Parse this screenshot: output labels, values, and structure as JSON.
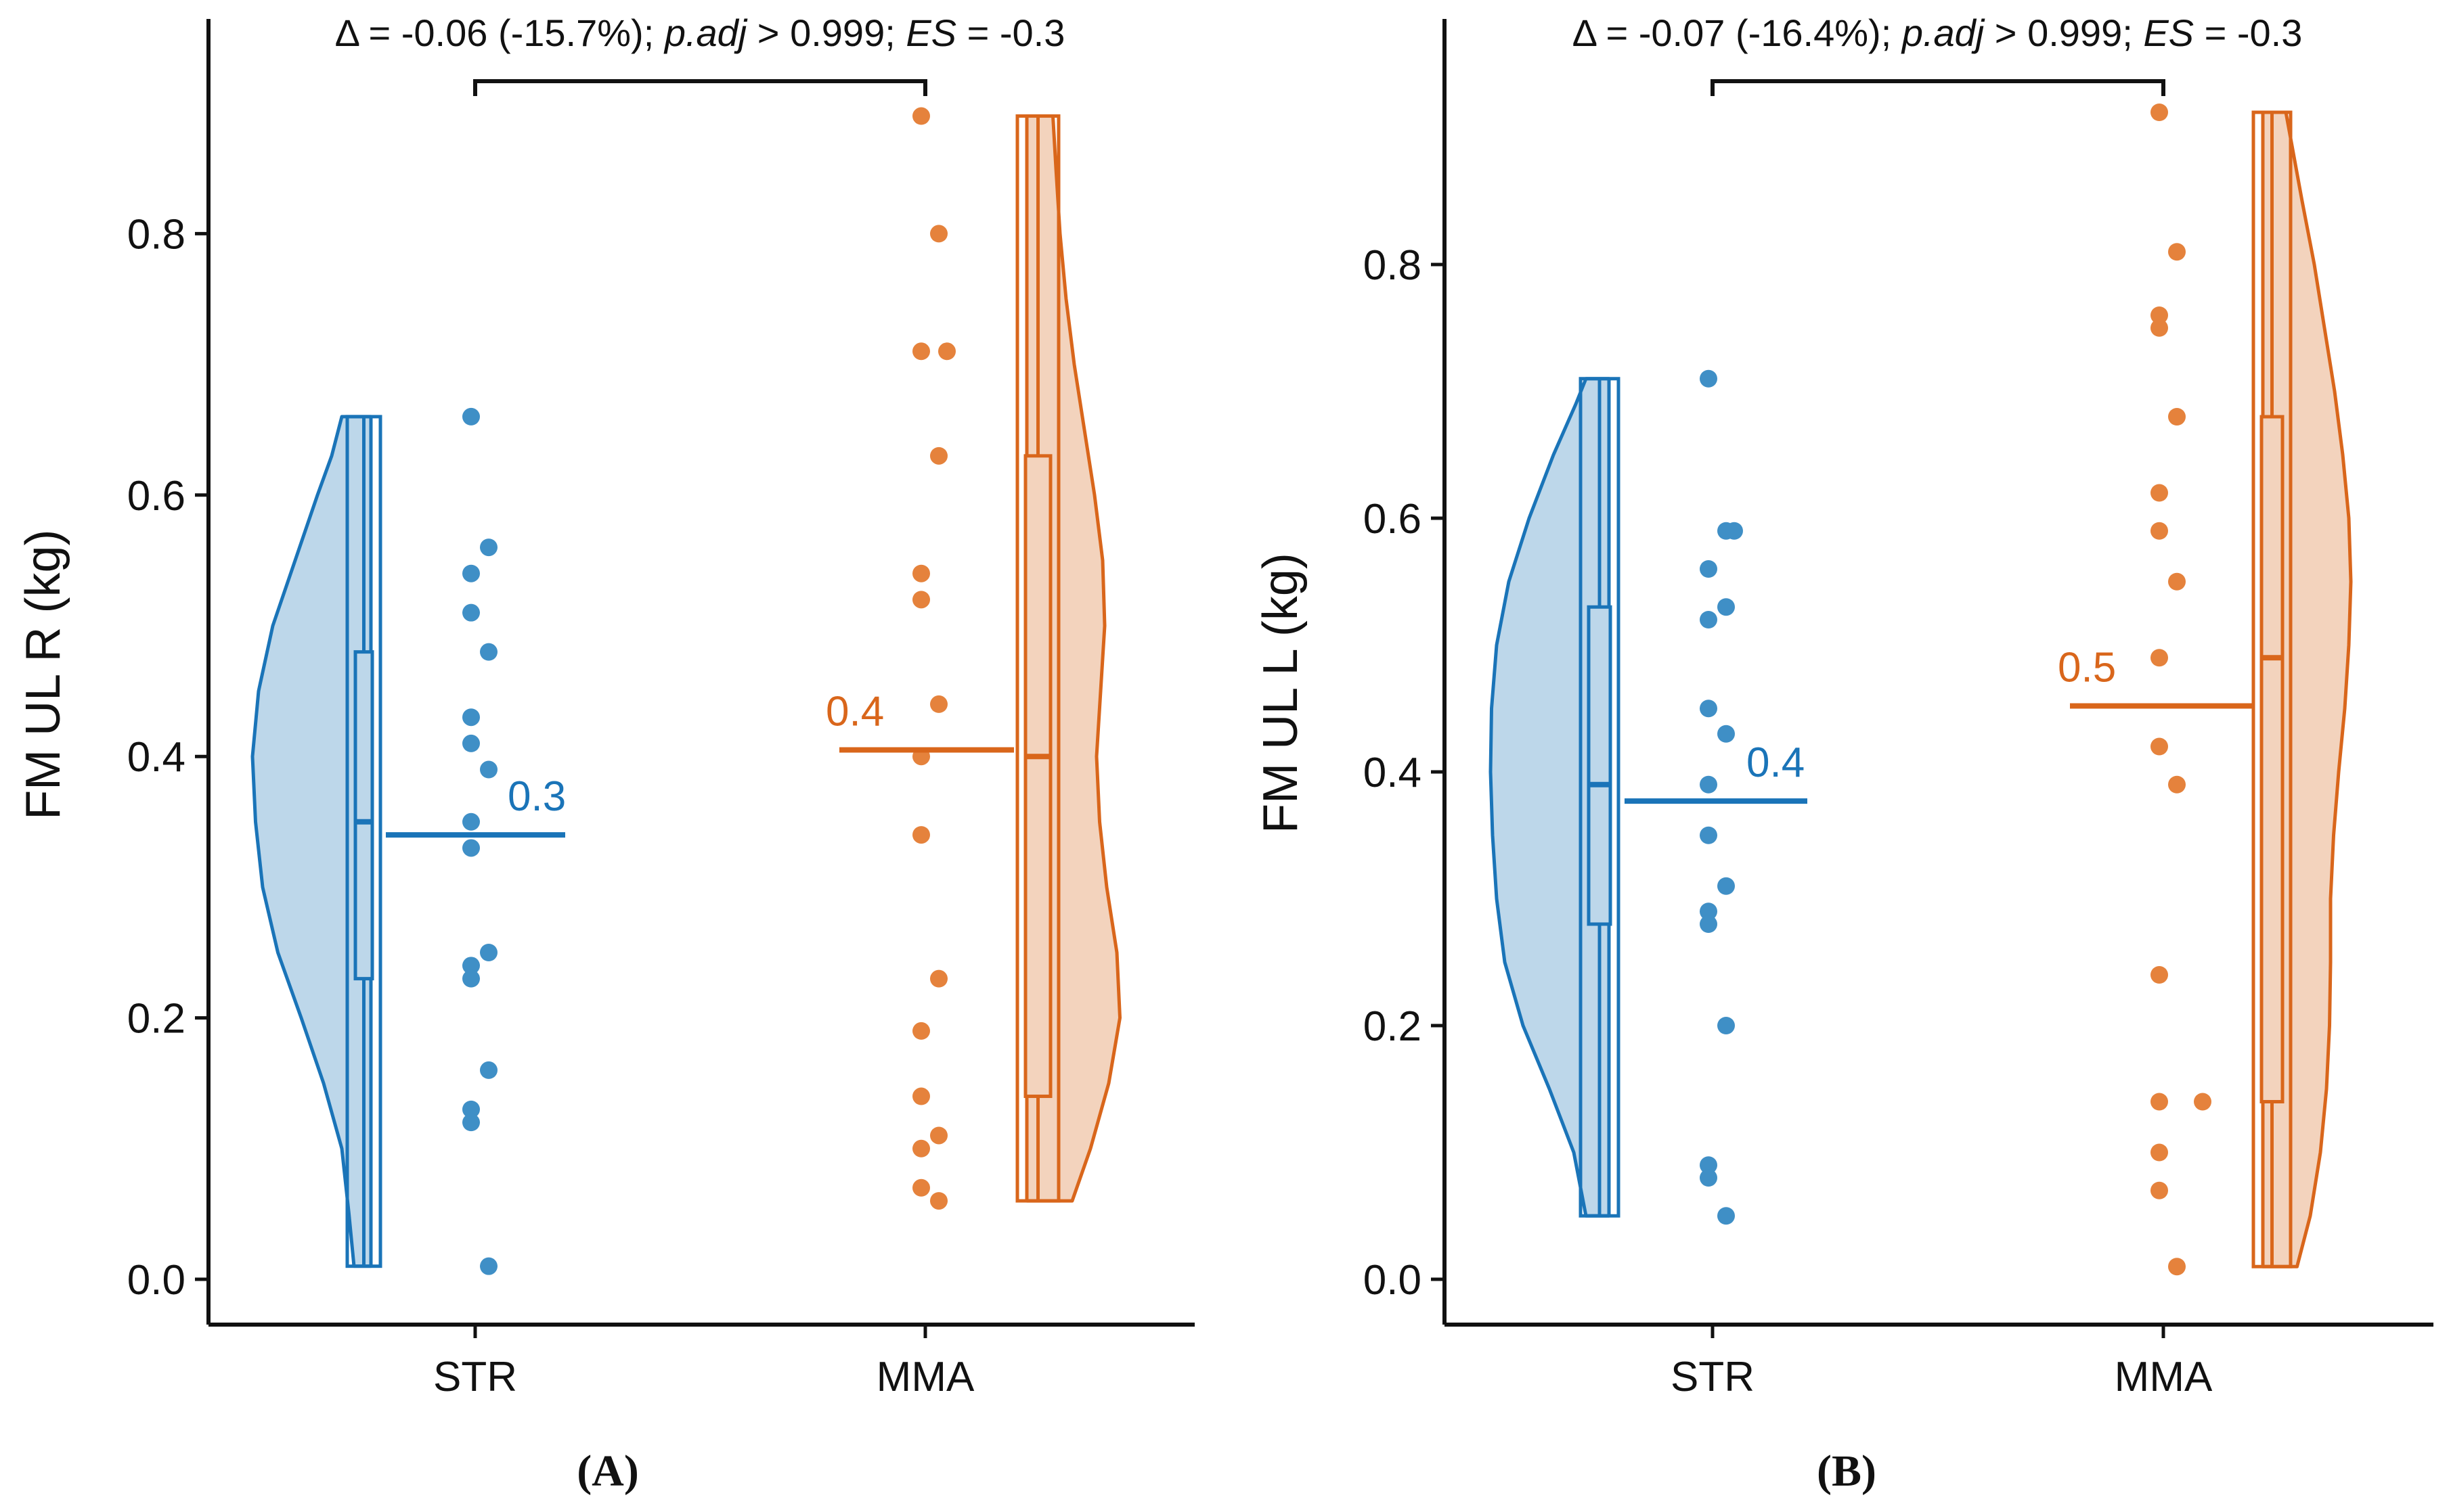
{
  "colors": {
    "STR": "#1a74b8",
    "MMA": "#d9661b",
    "STR_fill": "#bdd7ea",
    "STR_point": "#3f8fc6",
    "MMA_fill": "#f3d3bd",
    "MMA_point": "#e5823c",
    "axis": "#111111"
  },
  "chart_data": [
    {
      "type": "raincloud",
      "panel_label": "(A)",
      "ylabel": "FM UL R (kg)",
      "categories": [
        "STR",
        "MMA"
      ],
      "yticks": [
        "0.0",
        "0.2",
        "0.4",
        "0.6",
        "0.8"
      ],
      "ytick_values": [
        0.0,
        0.2,
        0.4,
        0.6,
        0.8
      ],
      "ylim": [
        -0.04,
        0.96
      ],
      "grid": false,
      "annotation": {
        "delta": "Δ = -0.06 (-15.7%); ",
        "p_label": "p.adj",
        "p_value": " > 0.999; ",
        "es_label": "ES",
        "es_value": " = -0.3"
      },
      "series": [
        {
          "name": "STR",
          "points": [
            0.66,
            0.56,
            0.54,
            0.51,
            0.48,
            0.43,
            0.41,
            0.39,
            0.35,
            0.33,
            0.25,
            0.24,
            0.23,
            0.16,
            0.13,
            0.12,
            0.01
          ],
          "mean": 0.34,
          "mean_label": "0.3",
          "box": {
            "min": 0.01,
            "q1": 0.23,
            "median": 0.35,
            "q3": 0.48,
            "max": 0.66
          },
          "density": [
            [
              0.01,
              0.0
            ],
            [
              0.05,
              0.05
            ],
            [
              0.1,
              0.12
            ],
            [
              0.15,
              0.3
            ],
            [
              0.2,
              0.52
            ],
            [
              0.25,
              0.75
            ],
            [
              0.3,
              0.9
            ],
            [
              0.35,
              0.97
            ],
            [
              0.4,
              1.0
            ],
            [
              0.45,
              0.94
            ],
            [
              0.5,
              0.8
            ],
            [
              0.55,
              0.58
            ],
            [
              0.6,
              0.36
            ],
            [
              0.63,
              0.22
            ],
            [
              0.66,
              0.12
            ]
          ]
        },
        {
          "name": "MMA",
          "points": [
            0.89,
            0.8,
            0.71,
            0.71,
            0.63,
            0.54,
            0.52,
            0.44,
            0.4,
            0.34,
            0.23,
            0.19,
            0.14,
            0.11,
            0.1,
            0.07,
            0.06
          ],
          "mean": 0.405,
          "mean_label": "0.4",
          "box": {
            "min": 0.06,
            "q1": 0.14,
            "median": 0.4,
            "q3": 0.63,
            "max": 0.89
          },
          "density": [
            [
              0.06,
              0.28
            ],
            [
              0.1,
              0.46
            ],
            [
              0.15,
              0.64
            ],
            [
              0.2,
              0.75
            ],
            [
              0.25,
              0.72
            ],
            [
              0.3,
              0.62
            ],
            [
              0.35,
              0.55
            ],
            [
              0.4,
              0.52
            ],
            [
              0.45,
              0.56
            ],
            [
              0.5,
              0.6
            ],
            [
              0.55,
              0.58
            ],
            [
              0.6,
              0.5
            ],
            [
              0.65,
              0.4
            ],
            [
              0.7,
              0.3
            ],
            [
              0.75,
              0.22
            ],
            [
              0.8,
              0.16
            ],
            [
              0.85,
              0.12
            ],
            [
              0.89,
              0.09
            ]
          ]
        }
      ]
    },
    {
      "type": "raincloud",
      "panel_label": "(B)",
      "ylabel": "FM UL L (kg)",
      "categories": [
        "STR",
        "MMA"
      ],
      "yticks": [
        "0.0",
        "0.2",
        "0.4",
        "0.6",
        "0.8"
      ],
      "ytick_values": [
        0.0,
        0.2,
        0.4,
        0.6,
        0.8
      ],
      "ylim": [
        -0.04,
        0.96
      ],
      "grid": false,
      "annotation": {
        "delta": "Δ = -0.07 (-16.4%); ",
        "p_label": "p.adj",
        "p_value": " > 0.999; ",
        "es_label": "ES",
        "es_value": " = -0.3"
      },
      "series": [
        {
          "name": "STR",
          "points": [
            0.71,
            0.59,
            0.59,
            0.56,
            0.53,
            0.52,
            0.45,
            0.43,
            0.39,
            0.35,
            0.31,
            0.29,
            0.28,
            0.2,
            0.09,
            0.08,
            0.05
          ],
          "mean": 0.377,
          "mean_label": "0.4",
          "box": {
            "min": 0.05,
            "q1": 0.28,
            "median": 0.39,
            "q3": 0.53,
            "max": 0.71
          },
          "density": [
            [
              0.05,
              0.06
            ],
            [
              0.1,
              0.18
            ],
            [
              0.15,
              0.42
            ],
            [
              0.2,
              0.68
            ],
            [
              0.25,
              0.86
            ],
            [
              0.3,
              0.94
            ],
            [
              0.35,
              0.98
            ],
            [
              0.4,
              1.0
            ],
            [
              0.45,
              0.99
            ],
            [
              0.5,
              0.94
            ],
            [
              0.55,
              0.82
            ],
            [
              0.6,
              0.62
            ],
            [
              0.65,
              0.38
            ],
            [
              0.69,
              0.16
            ],
            [
              0.71,
              0.06
            ]
          ]
        },
        {
          "name": "MMA",
          "points": [
            0.92,
            0.81,
            0.76,
            0.75,
            0.68,
            0.62,
            0.59,
            0.55,
            0.49,
            0.42,
            0.39,
            0.24,
            0.14,
            0.14,
            0.1,
            0.07,
            0.01
          ],
          "mean": 0.452,
          "mean_label": "0.5",
          "box": {
            "min": 0.01,
            "q1": 0.14,
            "median": 0.49,
            "q3": 0.68,
            "max": 0.92
          },
          "density": [
            [
              0.01,
              0.17
            ],
            [
              0.05,
              0.3
            ],
            [
              0.1,
              0.4
            ],
            [
              0.15,
              0.46
            ],
            [
              0.2,
              0.49
            ],
            [
              0.25,
              0.5
            ],
            [
              0.3,
              0.5
            ],
            [
              0.35,
              0.53
            ],
            [
              0.4,
              0.58
            ],
            [
              0.45,
              0.64
            ],
            [
              0.5,
              0.68
            ],
            [
              0.55,
              0.7
            ],
            [
              0.6,
              0.68
            ],
            [
              0.65,
              0.62
            ],
            [
              0.7,
              0.54
            ],
            [
              0.75,
              0.44
            ],
            [
              0.8,
              0.34
            ],
            [
              0.85,
              0.22
            ],
            [
              0.92,
              0.06
            ]
          ]
        }
      ]
    }
  ]
}
